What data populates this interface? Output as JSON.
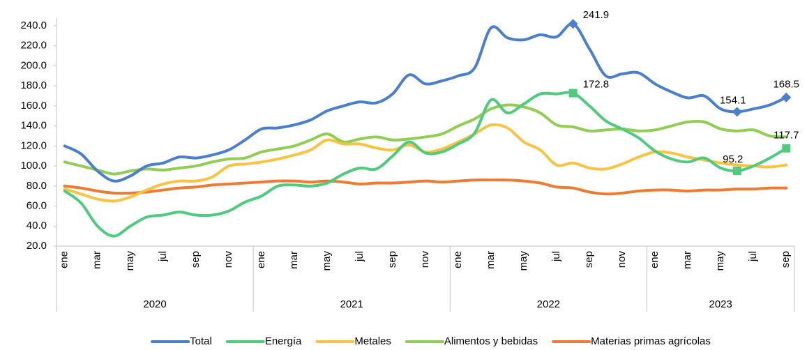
{
  "chart_data": {
    "type": "line",
    "categories": [
      "ene",
      null,
      "mar",
      null,
      "may",
      null,
      "jul",
      null,
      "sep",
      null,
      "nov",
      null,
      "ene",
      null,
      "mar",
      null,
      "may",
      null,
      "jul",
      null,
      "sep",
      null,
      "nov",
      null,
      "ene",
      null,
      "mar",
      null,
      "may",
      null,
      "jul",
      null,
      "sep",
      null,
      "nov",
      null,
      "ene",
      null,
      "mar",
      null,
      "may",
      null,
      "jul",
      null,
      "sep"
    ],
    "groups": [
      "2020",
      "2021",
      "2022",
      "2023"
    ],
    "ylim": [
      20,
      240
    ],
    "yticks": [
      {
        "value": 20,
        "label": "20.0"
      },
      {
        "value": 40,
        "label": "40.0"
      },
      {
        "value": 60,
        "label": "60.0"
      },
      {
        "value": 80,
        "label": "80.0"
      },
      {
        "value": 100,
        "label": "100.0"
      },
      {
        "value": 120,
        "label": "120.0"
      },
      {
        "value": 140,
        "label": "140.0"
      },
      {
        "value": 160,
        "label": "160.0"
      },
      {
        "value": 180,
        "label": "180.0"
      },
      {
        "value": 200,
        "label": "200.0"
      },
      {
        "value": 220,
        "label": "220.0"
      },
      {
        "value": 240,
        "label": "240.0"
      }
    ],
    "grid": false,
    "legend": "bottom",
    "series": [
      {
        "name": "Total",
        "color": "#4a7fcf",
        "marker": "diamond",
        "values": [
          120,
          112,
          95,
          85,
          90,
          100,
          103,
          109,
          108,
          111,
          116,
          126,
          137,
          138,
          141,
          146,
          155,
          160,
          164,
          163,
          172,
          191,
          182,
          185,
          190,
          198,
          238,
          228,
          226,
          231,
          229,
          241.9,
          217,
          190,
          192,
          193,
          182,
          174,
          168,
          170,
          157,
          154.1,
          157,
          161,
          168.5
        ],
        "value_labels": [
          null,
          null,
          null,
          null,
          null,
          null,
          null,
          null,
          null,
          null,
          null,
          null,
          null,
          null,
          null,
          null,
          null,
          null,
          null,
          null,
          null,
          null,
          null,
          null,
          null,
          null,
          null,
          null,
          null,
          null,
          null,
          "241.9",
          null,
          null,
          null,
          null,
          null,
          null,
          null,
          null,
          null,
          "154.1",
          null,
          null,
          "168.5"
        ]
      },
      {
        "name": "Energía",
        "color": "#4ecb7c",
        "marker": "square",
        "values": [
          75,
          63,
          40,
          30,
          40,
          49,
          51,
          54,
          51,
          51,
          55,
          64,
          70,
          80,
          81,
          80,
          83,
          92,
          98,
          97,
          110,
          124,
          113,
          114,
          122,
          133,
          166,
          153,
          162,
          172,
          172,
          172.8,
          160,
          145,
          137,
          128,
          115,
          107,
          104,
          108,
          98,
          95.2,
          100,
          108,
          117.7
        ],
        "value_labels": [
          null,
          null,
          null,
          null,
          null,
          null,
          null,
          null,
          null,
          null,
          null,
          null,
          null,
          null,
          null,
          null,
          null,
          null,
          null,
          null,
          null,
          null,
          null,
          null,
          null,
          null,
          null,
          null,
          null,
          null,
          null,
          "172.8",
          null,
          null,
          null,
          null,
          null,
          null,
          null,
          null,
          null,
          "95.2",
          null,
          null,
          "117.7"
        ]
      },
      {
        "name": "Metales",
        "color": "#f9c342",
        "values": [
          77,
          72,
          67,
          65,
          69,
          76,
          82,
          85,
          85,
          89,
          100,
          102,
          104,
          107,
          111,
          116,
          126,
          122,
          122,
          118,
          116,
          121,
          114,
          117,
          124,
          132,
          141,
          138,
          124,
          116,
          101,
          103,
          98,
          97,
          102,
          109,
          114,
          113,
          109,
          106,
          103,
          101,
          100,
          99,
          101
        ]
      },
      {
        "name": "Alimentos y bebidas",
        "color": "#8fce52",
        "values": [
          104,
          100,
          96,
          92,
          95,
          97,
          96,
          98,
          100,
          104,
          107,
          108,
          114,
          117,
          120,
          126,
          132,
          124,
          127,
          129,
          126,
          127,
          129,
          132,
          140,
          147,
          157,
          161,
          159,
          153,
          141,
          139,
          135,
          136,
          137,
          135,
          136,
          140,
          144,
          144,
          137,
          135,
          136,
          130,
          129
        ]
      },
      {
        "name": "Materias primas agrícolas",
        "color": "#ef7a32",
        "values": [
          80,
          78,
          75,
          73,
          73,
          74,
          76,
          78,
          79,
          81,
          82,
          83,
          84,
          85,
          85,
          84,
          85,
          84,
          82,
          83,
          83,
          84,
          85,
          84,
          85,
          86,
          86,
          86,
          85,
          83,
          79,
          78,
          74,
          72,
          73,
          75,
          76,
          76,
          75,
          76,
          76,
          77,
          77,
          78,
          78
        ]
      }
    ]
  }
}
